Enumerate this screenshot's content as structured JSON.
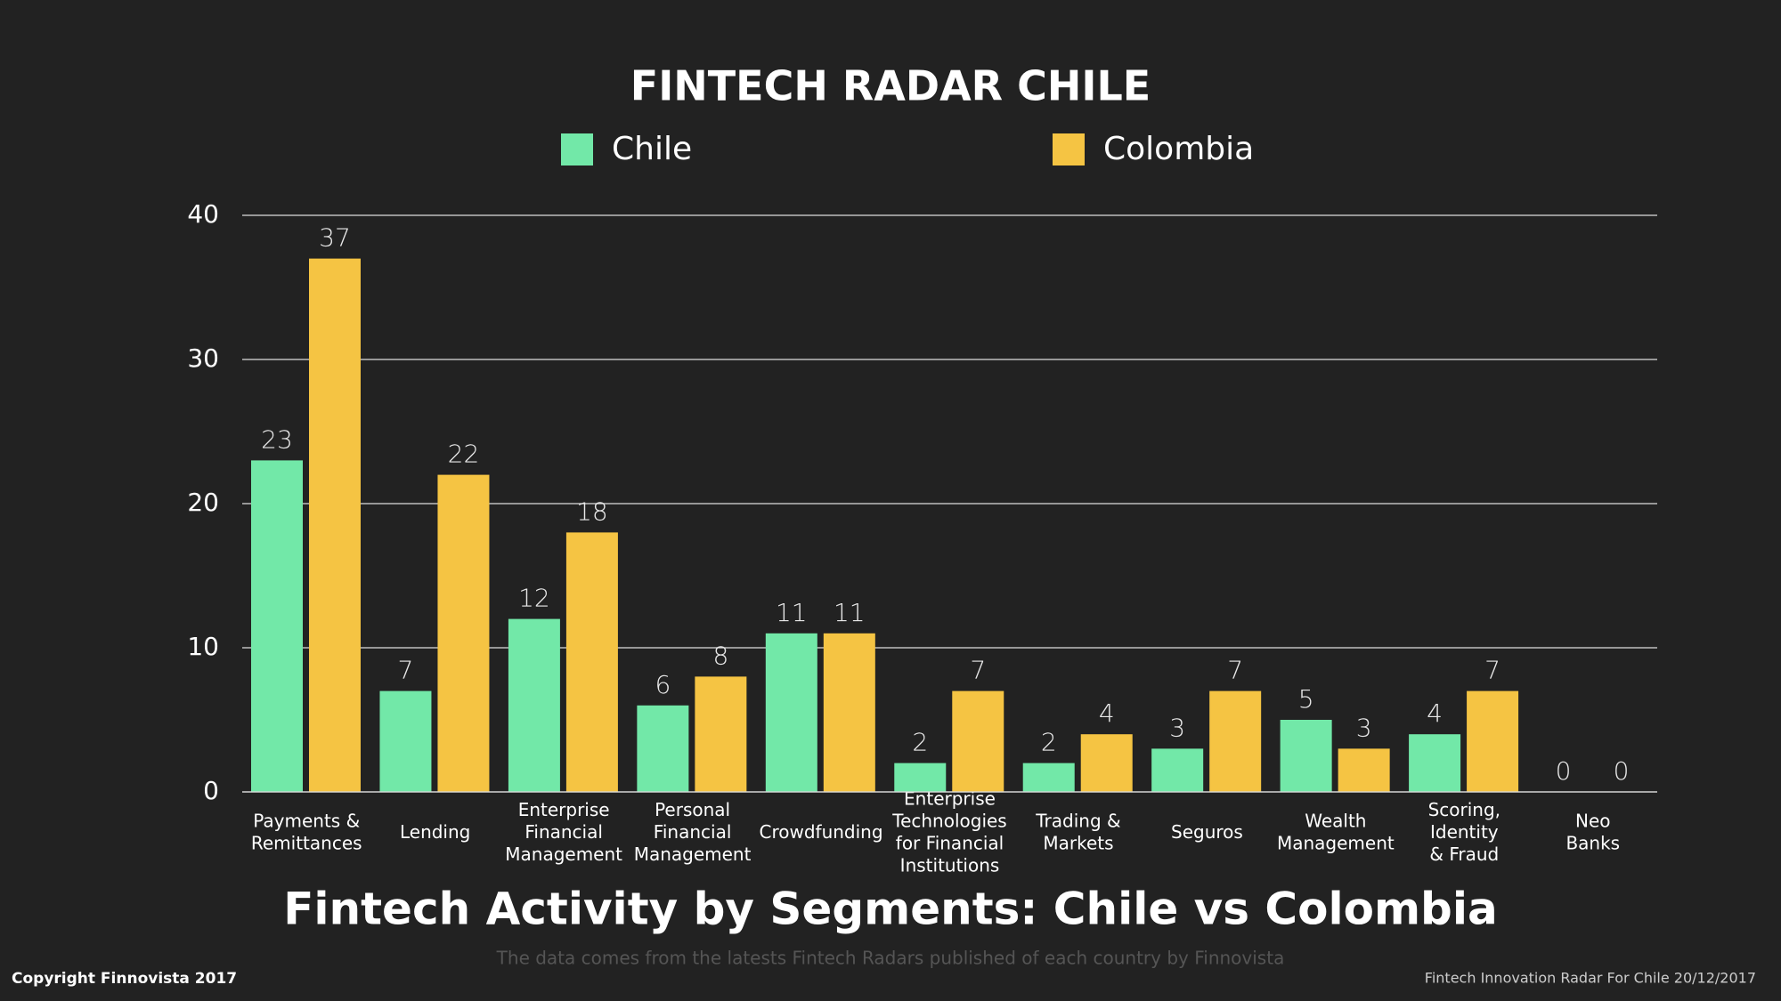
{
  "chart_data": {
    "type": "bar",
    "title": "FINTECH RADAR CHILE",
    "subtitle": "Fintech Activity by Segments: Chile vs Colombia",
    "note": "The data comes from the latests Fintech Radars published of each country  by Finnovista",
    "copyright": "Copyright Finnovista 2017",
    "footer": "Fintech Innovation Radar For Chile 20/12/2017",
    "categories": [
      "Payments &\nRemittances",
      "Lending",
      "Enterprise\nFinancial\nManagement",
      "Personal\nFinancial\nManagement",
      "Crowdfunding",
      "Enterprise\nTechnologies\nfor Financial\nInstitutions",
      "Trading &\nMarkets",
      "Seguros",
      "Wealth\nManagement",
      "Scoring,\nIdentity\n& Fraud",
      "Neo\nBanks"
    ],
    "series": [
      {
        "name": "Chile",
        "color": "#72e8a8",
        "values": [
          23,
          7,
          12,
          6,
          11,
          2,
          2,
          3,
          5,
          4,
          0
        ]
      },
      {
        "name": "Colombia",
        "color": "#f5c443",
        "values": [
          37,
          22,
          18,
          8,
          11,
          7,
          4,
          7,
          3,
          7,
          0
        ]
      }
    ],
    "ylim": [
      0,
      40
    ],
    "yticks": [
      0,
      10,
      20,
      30,
      40
    ],
    "grid": true,
    "legend": "top"
  }
}
